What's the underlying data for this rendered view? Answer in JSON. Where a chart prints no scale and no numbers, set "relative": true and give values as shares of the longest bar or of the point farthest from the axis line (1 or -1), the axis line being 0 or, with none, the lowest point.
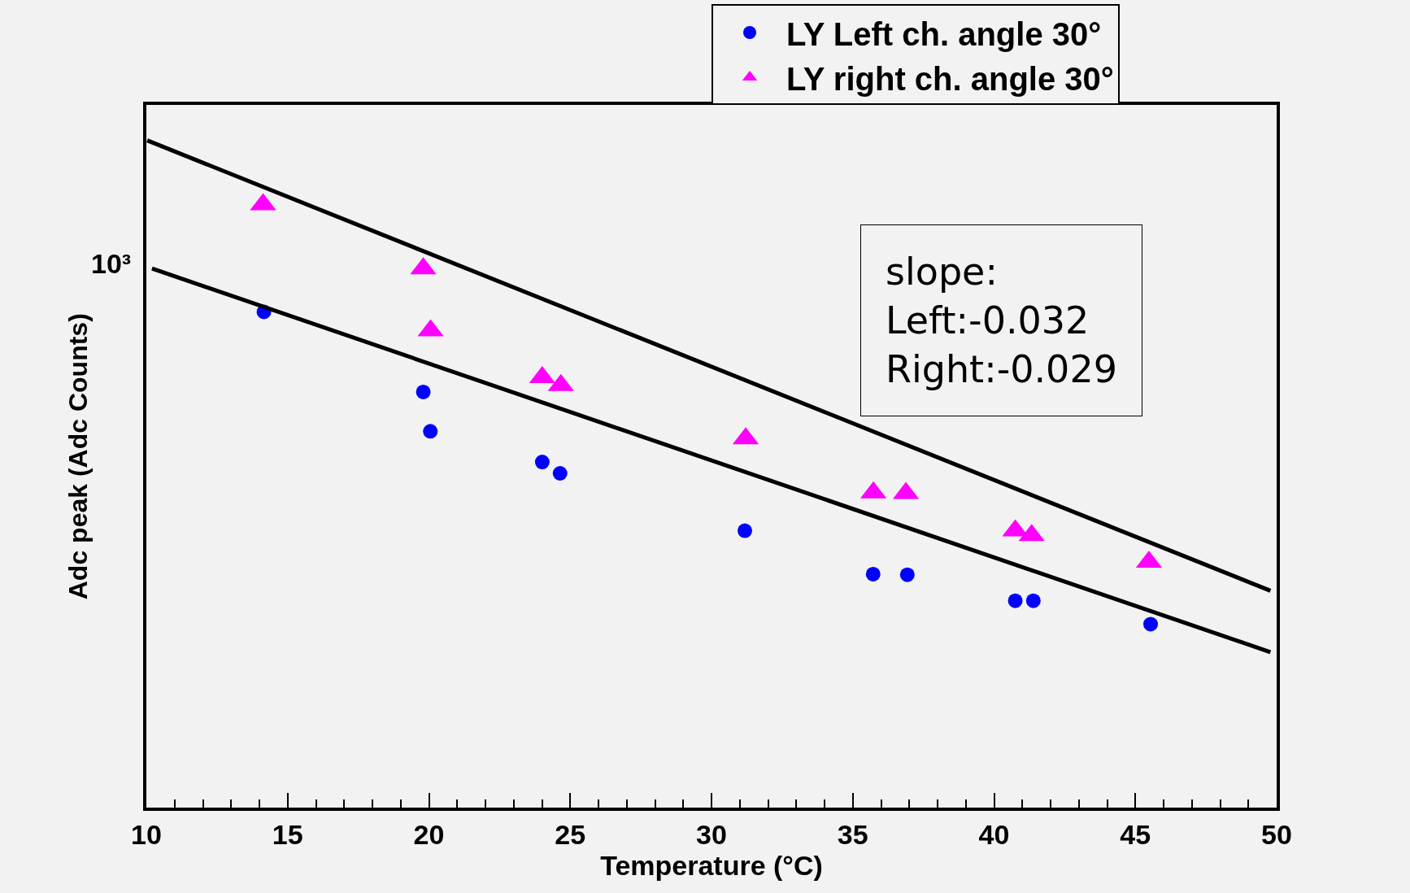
{
  "chart_data": {
    "type": "scatter",
    "xlabel": "Temperature (°C)",
    "ylabel": "Adc peak (Adc Counts)",
    "xlim": [
      10,
      50
    ],
    "xticks": [
      10,
      15,
      20,
      25,
      30,
      35,
      40,
      45,
      50
    ],
    "relative": true,
    "grid": false,
    "legend": "top right",
    "series": [
      {
        "name": "LY Left ch. angle 30°",
        "color": "#0000ff",
        "marker": "circle",
        "x": [
          14.16,
          19.8,
          20.05,
          24.01,
          24.64,
          31.18,
          35.72,
          36.93,
          40.75,
          41.39,
          45.54
        ],
        "values": [
          0.743,
          0.623,
          0.564,
          0.518,
          0.501,
          0.415,
          0.35,
          0.349,
          0.31,
          0.31,
          0.275
        ]
      },
      {
        "name": "LY right ch. angle 30°",
        "color": "#ff00ff",
        "marker": "triangle",
        "x": [
          14.13,
          19.8,
          20.06,
          24.01,
          24.67,
          31.21,
          35.73,
          36.88,
          40.75,
          41.33,
          45.48
        ],
        "values": [
          0.904,
          0.808,
          0.715,
          0.645,
          0.633,
          0.553,
          0.472,
          0.471,
          0.415,
          0.408,
          0.368
        ]
      },
      {
        "type": "line",
        "color": "#000000",
        "marker": "none",
        "x": [
          10.03,
          49.78
        ],
        "values": [
          1,
          0.325
        ]
      },
      {
        "type": "line",
        "color": "#000000",
        "marker": "none",
        "x": [
          10.2,
          49.78
        ],
        "values": [
          0.808,
          0.233
        ]
      }
    ],
    "annotations": [
      "slope:\nLeft:-0.032\nRight:-0.029",
      "10³"
    ]
  }
}
